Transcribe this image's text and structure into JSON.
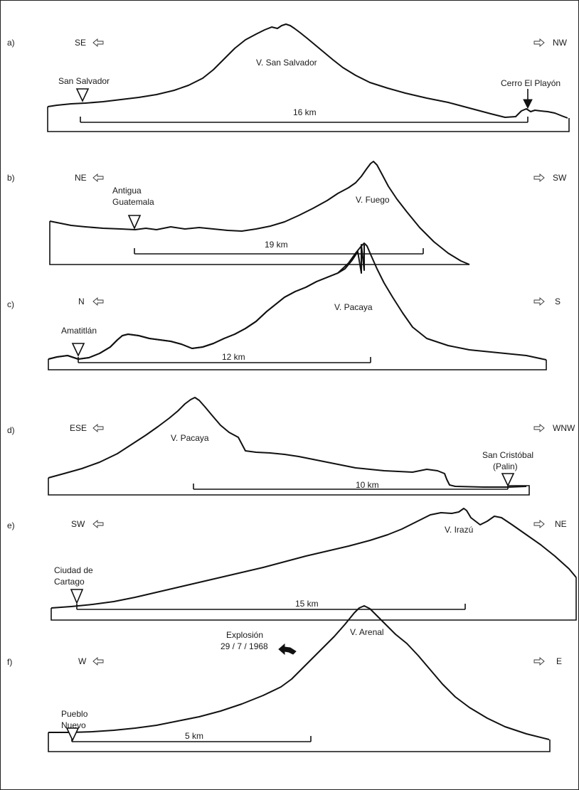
{
  "panels": [
    {
      "id": "a",
      "label": "a)",
      "dir_left": "SE",
      "dir_right": "NW",
      "volcano": "V. San Salvador",
      "scale": "16 km",
      "places": [
        {
          "name": "San Salvador",
          "marker": "open"
        },
        {
          "name": "Cerro El Playón",
          "marker": "solid"
        }
      ]
    },
    {
      "id": "b",
      "label": "b)",
      "dir_left": "NE",
      "dir_right": "SW",
      "volcano": "V. Fuego",
      "scale": "19 km",
      "places": [
        {
          "name": "Antigua Guatemala",
          "marker": "open"
        }
      ]
    },
    {
      "id": "c",
      "label": "c)",
      "dir_left": "N",
      "dir_right": "S",
      "volcano": "V. Pacaya",
      "scale": "12 km",
      "places": [
        {
          "name": "Amatitlán",
          "marker": "open"
        }
      ]
    },
    {
      "id": "d",
      "label": "d)",
      "dir_left": "ESE",
      "dir_right": "WNW",
      "volcano": "V. Pacaya",
      "scale": "10 km",
      "places": [
        {
          "name": "San Cristóbal (Palin)",
          "marker": "open"
        }
      ]
    },
    {
      "id": "e",
      "label": "e)",
      "dir_left": "SW",
      "dir_right": "NE",
      "volcano": "V. Irazú",
      "scale": "15 km",
      "places": [
        {
          "name": "Ciudad de Cartago",
          "marker": "open"
        }
      ]
    },
    {
      "id": "f",
      "label": "f)",
      "dir_left": "W",
      "dir_right": "E",
      "volcano": "V. Arenal",
      "scale": "5 km",
      "places": [
        {
          "name": "Pueblo Nuevo",
          "marker": "open"
        }
      ],
      "event": "Explosión 29 / 7 / 1968"
    }
  ]
}
